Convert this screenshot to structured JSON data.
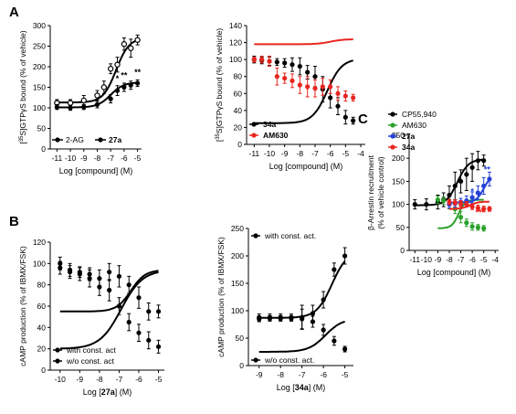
{
  "chart_data": [
    {
      "panel_letter": "A",
      "type": "line",
      "ylabel_parts": [
        "[",
        "35",
        "S]GTPγS bound (% of vehicle)"
      ],
      "xlabel": "Log [compound] (M)",
      "xlim": [
        -11.5,
        -4.7
      ],
      "ylim": [
        0,
        300
      ],
      "xticks": [
        -11,
        -10,
        -9,
        -8,
        -7,
        -6,
        -5
      ],
      "xtick_labels": [
        "-11",
        "-10",
        "-9",
        "-8",
        "-7",
        "-6",
        "-5"
      ],
      "yticks": [
        0,
        50,
        100,
        150,
        200,
        250,
        300
      ],
      "ytick_labels": [
        "0",
        "50",
        "100",
        "150",
        "200",
        "250",
        "300"
      ],
      "legend": [
        "2-AG",
        "27a"
      ],
      "series": [
        {
          "name": "2-AG",
          "marker": "open",
          "x": [
            -11,
            -10,
            -9,
            -8,
            -7.5,
            -7,
            -6.5,
            -6,
            -5.5,
            -5
          ],
          "y": [
            112,
            112,
            118,
            130,
            150,
            195,
            205,
            255,
            245,
            265
          ],
          "err": [
            8,
            8,
            12,
            12,
            15,
            12,
            18,
            15,
            22,
            12
          ],
          "fit": {
            "bottom": 113,
            "top": 270,
            "logec50": -6.6,
            "hill": 0.9
          }
        },
        {
          "name": "27a",
          "marker": "filled",
          "x": [
            -11,
            -10,
            -9,
            -8,
            -7,
            -6.5,
            -6,
            -5.5,
            -5
          ],
          "y": [
            102,
            100,
            102,
            108,
            122,
            142,
            150,
            155,
            160
          ],
          "err": [
            6,
            6,
            6,
            8,
            10,
            12,
            10,
            10,
            8
          ],
          "fit": {
            "bottom": 101,
            "top": 162,
            "logec50": -7.0,
            "hill": 0.9
          }
        }
      ],
      "annotations": [
        {
          "text": "*",
          "x": -6.5,
          "y": 165
        },
        {
          "text": "**",
          "x": -6.0,
          "y": 172
        },
        {
          "text": "**",
          "x": -5.0,
          "y": 180
        }
      ]
    },
    {
      "panel_letter": "",
      "type": "line",
      "ylabel_parts": [
        "[",
        "35",
        "S]GTPγS bound (% of vehicle)"
      ],
      "xlabel": "Log [compound] (M)",
      "xlim": [
        -11.5,
        -3.7
      ],
      "ylim": [
        0,
        140
      ],
      "xticks": [
        -11,
        -10,
        -9,
        -8,
        -7,
        -6,
        -5,
        -4
      ],
      "xtick_labels": [
        "-11",
        "-10",
        "-9",
        "-8",
        "-7",
        "-6",
        "-5",
        "-4"
      ],
      "yticks": [
        0,
        20,
        40,
        60,
        80,
        100,
        120,
        140
      ],
      "ytick_labels": [
        "0",
        "20",
        "40",
        "60",
        "80",
        "100",
        "120",
        "140"
      ],
      "legend": [
        "34a",
        "AM630"
      ],
      "series": [
        {
          "name": "34a",
          "color": "#000000",
          "x": [
            -11,
            -10.5,
            -10,
            -9.5,
            -9,
            -8.5,
            -8,
            -7.5,
            -7,
            -6.5,
            -6,
            -5.5,
            -5,
            -4.5
          ],
          "y": [
            100,
            99,
            98,
            97,
            96,
            94,
            92,
            85,
            80,
            65,
            55,
            45,
            32,
            28
          ],
          "err": [
            4,
            4,
            5,
            4,
            5,
            8,
            10,
            8,
            12,
            15,
            12,
            10,
            8,
            4
          ],
          "fit": {
            "bottom": 25,
            "top": 101,
            "logec50": -6.2,
            "hill": 0.9
          }
        },
        {
          "name": "AM630",
          "color": "#e8251f",
          "x": [
            -11,
            -10.5,
            -10,
            -9.5,
            -9,
            -8.5,
            -8,
            -7.5,
            -7,
            -6.5,
            -6,
            -5.5,
            -5,
            -4.5
          ],
          "y": [
            100,
            100,
            98,
            80,
            78,
            75,
            70,
            68,
            66,
            68,
            68,
            60,
            57,
            55
          ],
          "err": [
            3,
            4,
            6,
            10,
            6,
            8,
            10,
            12,
            10,
            10,
            8,
            8,
            6,
            4
          ],
          "fit": {
            "bottom": 118,
            "top": 124,
            "logec50": -6.0,
            "hill": 1.0
          }
        }
      ],
      "extra_red_fit": {
        "bottom": 27,
        "top": 101,
        "logec50": -8.3,
        "hill": 0.7
      },
      "extra_black_fit": {
        "bottom": 96,
        "top": 125,
        "logec50": -6.1,
        "hill": 1.0
      }
    },
    {
      "panel_letter": "B",
      "type": "line",
      "ylabel": "cAMP production (% of IBMX/FSK)",
      "xlabel_parts": [
        "Log [",
        "27a",
        "] (M)"
      ],
      "xlim": [
        -10.5,
        -4.7
      ],
      "ylim": [
        0,
        120
      ],
      "xticks": [
        -10,
        -9,
        -8,
        -7,
        -6,
        -5
      ],
      "xtick_labels": [
        "-10",
        "-9",
        "-8",
        "-7",
        "-6",
        "-5"
      ],
      "yticks": [
        0,
        20,
        40,
        60,
        80,
        100,
        120
      ],
      "ytick_labels": [
        "0",
        "20",
        "40",
        "60",
        "80",
        "100",
        "120"
      ],
      "legend": [
        "with const. act",
        "w/o const. act"
      ],
      "series": [
        {
          "name": "with const. act",
          "x": [
            -10,
            -9.5,
            -9,
            -8.5,
            -8,
            -7.5,
            -7,
            -6.5,
            -6,
            -5.5,
            -5
          ],
          "y": [
            100,
            94,
            92,
            90,
            86,
            92,
            88,
            80,
            68,
            55,
            55
          ],
          "err": [
            6,
            6,
            5,
            6,
            8,
            8,
            10,
            8,
            10,
            8,
            6
          ],
          "fit": {
            "bottom": 55,
            "top": 94,
            "logec50": -6.4,
            "hill": 1.2
          }
        },
        {
          "name": "w/o const. act",
          "x": [
            -10,
            -9.5,
            -9,
            -8.5,
            -8,
            -7.5,
            -7,
            -6.5,
            -6,
            -5.5,
            -5
          ],
          "y": [
            96,
            92,
            90,
            86,
            78,
            75,
            60,
            45,
            35,
            28,
            22
          ],
          "err": [
            6,
            6,
            6,
            8,
            8,
            10,
            8,
            8,
            8,
            8,
            6
          ],
          "fit": {
            "bottom": 20,
            "top": 94,
            "logec50": -6.9,
            "hill": 0.8
          }
        }
      ]
    },
    {
      "panel_letter": "",
      "type": "line",
      "ylabel": "cAMP production (% of IBMX/FSK)",
      "xlabel_parts": [
        "Log [",
        "34a",
        "] (M)"
      ],
      "xlim": [
        -9.5,
        -4.6
      ],
      "ylim": [
        0,
        250
      ],
      "xticks": [
        -9,
        -8,
        -7,
        -6,
        -5
      ],
      "xtick_labels": [
        "-9",
        "-8",
        "-7",
        "-6",
        "-5"
      ],
      "yticks": [
        0,
        50,
        100,
        150,
        200,
        250
      ],
      "ytick_labels": [
        "0",
        "50",
        "100",
        "150",
        "200",
        "250"
      ],
      "legend": [
        "with const. act.",
        "w/o const. act."
      ],
      "series": [
        {
          "name": "with const. act.",
          "x": [
            -9,
            -8.5,
            -8,
            -7.5,
            -7,
            -6.5,
            -6,
            -5.5,
            -5
          ],
          "y": [
            88,
            88,
            88,
            88,
            88,
            95,
            120,
            175,
            200
          ],
          "err": [
            6,
            6,
            6,
            6,
            22,
            15,
            15,
            12,
            15
          ],
          "fit": {
            "bottom": 87,
            "top": 210,
            "logec50": -5.6,
            "hill": 1.2
          }
        },
        {
          "name": "w/o const. act.",
          "x": [
            -9,
            -8.5,
            -8,
            -7.5,
            -7,
            -6.5,
            -6,
            -5.5,
            -5
          ],
          "y": [
            85,
            86,
            86,
            86,
            85,
            80,
            65,
            45,
            30
          ],
          "err": [
            5,
            5,
            5,
            5,
            18,
            10,
            10,
            8,
            5
          ],
          "fit": {
            "bottom": 25,
            "top": 86,
            "logec50": -5.9,
            "hill": 1.1
          }
        }
      ]
    },
    {
      "panel_letter": "C",
      "type": "line",
      "ylabel_lines": [
        "β-Arrestin recruitment",
        "(% of vehicle control)"
      ],
      "xlabel": "Log [compound] (M)",
      "xlim": [
        -11.5,
        -3.7
      ],
      "ylim": [
        0,
        250
      ],
      "xticks": [
        -11,
        -10,
        -9,
        -8,
        -7,
        -6,
        -5,
        -4
      ],
      "xtick_labels": [
        "-11",
        "-10",
        "-9",
        "-8",
        "-7",
        "-6",
        "-5",
        "-4"
      ],
      "yticks": [
        0,
        50,
        100,
        150,
        200,
        250
      ],
      "ytick_labels": [
        "0",
        "50",
        "100",
        "150",
        "200",
        "250"
      ],
      "legend": [
        "CP55,940",
        "AM630",
        "27a",
        "34a"
      ],
      "series": [
        {
          "name": "CP55,940",
          "color": "#000000",
          "x": [
            -11,
            -10,
            -9,
            -8.5,
            -8,
            -7.5,
            -7,
            -6.5,
            -6,
            -5.5,
            -5
          ],
          "y": [
            100,
            100,
            105,
            110,
            120,
            140,
            150,
            165,
            180,
            195,
            195
          ],
          "err": [
            10,
            12,
            15,
            15,
            20,
            30,
            25,
            35,
            30,
            20,
            12
          ],
          "fit": {
            "bottom": 98,
            "top": 198,
            "logec50": -7.3,
            "hill": 0.9
          }
        },
        {
          "name": "AM630",
          "color": "#2aa12a",
          "x": [
            -9,
            -8.5,
            -8,
            -7.5,
            -7,
            -6.5,
            -6,
            -5.5,
            -5
          ],
          "y": [
            110,
            108,
            100,
            90,
            72,
            60,
            52,
            50,
            48
          ],
          "err": [
            8,
            8,
            10,
            10,
            12,
            8,
            8,
            6,
            6
          ],
          "fit": {
            "bottom": 48,
            "top": 110,
            "logec50": -7.2,
            "hill": 1.5
          }
        },
        {
          "name": "27a",
          "color": "#2440d8",
          "x": [
            -8,
            -7.5,
            -7,
            -6.5,
            -6,
            -5.5,
            -5,
            -4.5
          ],
          "y": [
            100,
            102,
            105,
            108,
            115,
            125,
            140,
            155
          ],
          "err": [
            8,
            8,
            8,
            10,
            12,
            15,
            18,
            15
          ],
          "fit": {
            "bottom": 104,
            "top": 165,
            "logec50": -5.0,
            "hill": 1.3
          }
        },
        {
          "name": "34a",
          "color": "#e8251f",
          "x": [
            -8,
            -7.5,
            -7,
            -6.5,
            -6,
            -5.5,
            -5,
            -4.5
          ],
          "y": [
            105,
            104,
            102,
            100,
            95,
            92,
            90,
            90
          ],
          "err": [
            6,
            6,
            6,
            6,
            6,
            6,
            6,
            5
          ],
          "fit": {
            "bottom": 90,
            "top": 106,
            "logec50": -6.2,
            "hill": 1.2
          }
        }
      ],
      "annotations": [
        {
          "text": "*",
          "x": -6.0,
          "y": 122,
          "color": "#2440d8"
        },
        {
          "text": "**",
          "x": -4.7,
          "y": 170,
          "color": "#2440d8"
        },
        {
          "text": "*",
          "x": -7.0,
          "y": 85,
          "color": "#e8251f"
        },
        {
          "text": "***",
          "x": -5.3,
          "y": 76,
          "color": "#e8251f"
        }
      ]
    }
  ]
}
